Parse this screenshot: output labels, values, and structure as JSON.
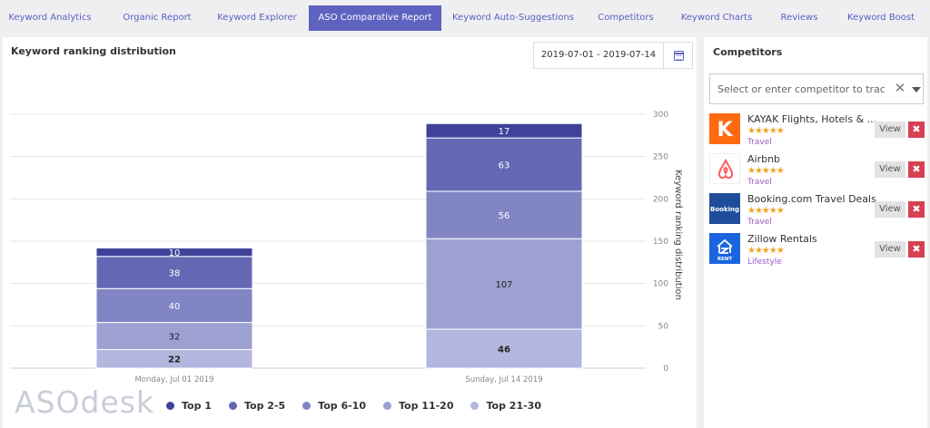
{
  "tabs": [
    {
      "label": "Keyword Analytics",
      "active": false
    },
    {
      "label": "Organic Report",
      "active": false
    },
    {
      "label": "Keyword Explorer",
      "active": false
    },
    {
      "label": "ASO Comparative Report",
      "active": true
    },
    {
      "label": "Keyword Auto-Suggestions",
      "active": false
    },
    {
      "label": "Competitors",
      "active": false
    },
    {
      "label": "Keyword Charts",
      "active": false
    },
    {
      "label": "Reviews",
      "active": false
    },
    {
      "label": "Keyword Boost",
      "active": false
    }
  ],
  "main": {
    "title": "Keyword ranking distribution",
    "date_range": "2019-07-01 - 2019-07-14",
    "calendar_icon": "calendar-icon",
    "logo_text": "ASOdesk"
  },
  "colors": {
    "accent": "#5e63bf",
    "danger": "#d64052",
    "star": "#f2a31f",
    "category": "#9b59c6"
  },
  "chart_data": {
    "type": "bar",
    "stacked": true,
    "categories": [
      "Monday, Jul 01 2019",
      "Sunday, Jul 14 2019"
    ],
    "series": [
      {
        "name": "Top 1",
        "values": [
          10,
          17
        ],
        "color": "#3f4299"
      },
      {
        "name": "Top 2-5",
        "values": [
          38,
          63
        ],
        "color": "#6468b4"
      },
      {
        "name": "Top 6-10",
        "values": [
          40,
          56
        ],
        "color": "#8185c4"
      },
      {
        "name": "Top 11-20",
        "values": [
          32,
          107
        ],
        "color": "#9da1d2"
      },
      {
        "name": "Top 21-30",
        "values": [
          22,
          46
        ],
        "color": "#b3b6de"
      }
    ],
    "ylabel": "Keyword ranking distribution",
    "ylim": [
      0,
      300
    ],
    "yticks": [
      0,
      50,
      100,
      150,
      200,
      250,
      300
    ],
    "y_axis_side": "right",
    "grid": true,
    "legend_position": "bottom"
  },
  "competitors": {
    "title": "Competitors",
    "placeholder": "Select or enter competitor to track...",
    "clear_icon": "close-icon",
    "dropdown_icon": "chevron-down-icon",
    "view_label": "View",
    "remove_label": "✖",
    "items": [
      {
        "name": "KAYAK Flights, Hotels & ...",
        "category": "Travel",
        "rating": 4.5,
        "stars": "★★★★★",
        "icon": "kayak-logo-icon",
        "icon_letter": "K",
        "icon_bg": "#ff690f"
      },
      {
        "name": "Airbnb",
        "category": "Travel",
        "rating": 4.5,
        "stars": "★★★★★",
        "icon": "airbnb-logo-icon",
        "icon_bg": "#ff5a5f"
      },
      {
        "name": "Booking.com Travel Deals",
        "category": "Travel",
        "rating": 4.5,
        "stars": "★★★★★",
        "icon": "booking-logo-icon",
        "icon_letter": "Booking",
        "icon_bg": "#1f4d9b"
      },
      {
        "name": "Zillow Rentals",
        "category": "Lifestyle",
        "rating": 4.5,
        "stars": "★★★★★",
        "icon": "zillow-logo-icon",
        "icon_letter": "RENT",
        "icon_bg": "#1a64e0"
      }
    ]
  }
}
